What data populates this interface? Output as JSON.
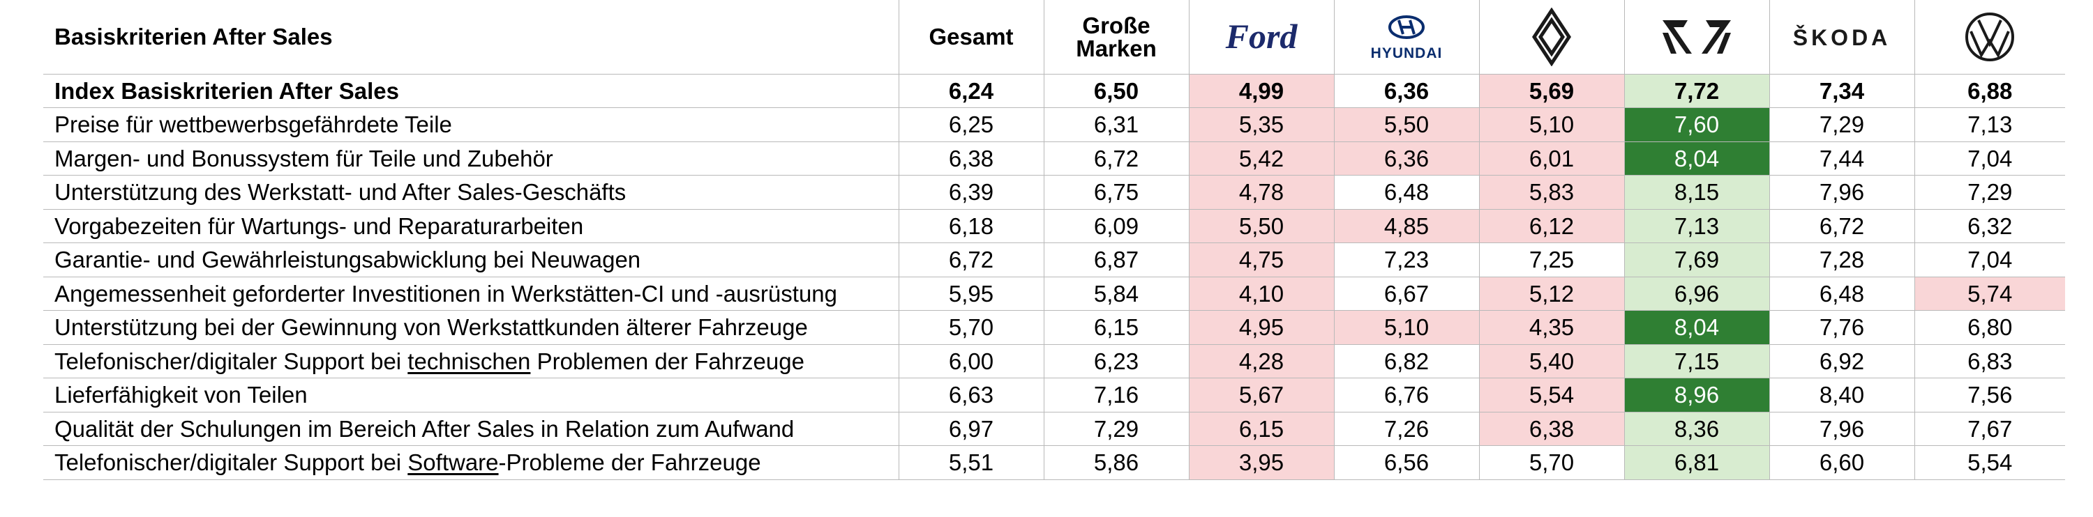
{
  "table": {
    "header": {
      "title": "Basiskriterien After Sales",
      "gesamt": "Gesamt",
      "grosse_line1": "Große",
      "grosse_line2": "Marken",
      "brands": [
        {
          "name": "Ford",
          "logo": "ford-logo",
          "color": "#1c2a6b"
        },
        {
          "name": "Hyundai",
          "logo": "hyundai-logo",
          "color": "#0a2d6e"
        },
        {
          "name": "Renault",
          "logo": "renault-logo",
          "color": "#1a1a1a"
        },
        {
          "name": "Cupra",
          "logo": "cupra-logo",
          "color": "#1a1a1a"
        },
        {
          "name": "ŠKODA",
          "logo": "skoda-logo",
          "color": "#1a1a1a"
        },
        {
          "name": "Volkswagen",
          "logo": "vw-logo",
          "color": "#1a1a1a"
        }
      ]
    },
    "rows": [
      {
        "label": "Index Basiskriterien After Sales",
        "values": [
          "6,24",
          "6,50",
          "4,99",
          "6,36",
          "5,69",
          "7,72",
          "7,34",
          "6,88"
        ],
        "highlight": [
          "",
          "",
          "pink",
          "",
          "pink",
          "light",
          "",
          ""
        ]
      },
      {
        "label": "Preise für wettbewerbsgefährdete Teile",
        "values": [
          "6,25",
          "6,31",
          "5,35",
          "5,50",
          "5,10",
          "7,60",
          "7,29",
          "7,13"
        ],
        "highlight": [
          "",
          "",
          "pink",
          "pink",
          "pink",
          "dark",
          "",
          ""
        ]
      },
      {
        "label": "Margen- und Bonussystem für Teile und Zubehör",
        "values": [
          "6,38",
          "6,72",
          "5,42",
          "6,36",
          "6,01",
          "8,04",
          "7,44",
          "7,04"
        ],
        "highlight": [
          "",
          "",
          "pink",
          "pink",
          "pink",
          "dark",
          "",
          ""
        ]
      },
      {
        "label": "Unterstützung des Werkstatt- und After Sales-Geschäfts",
        "values": [
          "6,39",
          "6,75",
          "4,78",
          "6,48",
          "5,83",
          "8,15",
          "7,96",
          "7,29"
        ],
        "highlight": [
          "",
          "",
          "pink",
          "",
          "pink",
          "light",
          "",
          ""
        ]
      },
      {
        "label": "Vorgabezeiten für Wartungs- und Reparaturarbeiten",
        "values": [
          "6,18",
          "6,09",
          "5,50",
          "4,85",
          "6,12",
          "7,13",
          "6,72",
          "6,32"
        ],
        "highlight": [
          "",
          "",
          "pink",
          "pink",
          "pink",
          "light",
          "",
          ""
        ]
      },
      {
        "label": "Garantie- und Gewährleistungsabwicklung bei Neuwagen",
        "values": [
          "6,72",
          "6,87",
          "4,75",
          "7,23",
          "7,25",
          "7,69",
          "7,28",
          "7,04"
        ],
        "highlight": [
          "",
          "",
          "pink",
          "",
          "",
          "light",
          "",
          ""
        ]
      },
      {
        "label": "Angemessenheit geforderter Investitionen in Werkstätten-CI und -ausrüstung",
        "values": [
          "5,95",
          "5,84",
          "4,10",
          "6,67",
          "5,12",
          "6,96",
          "6,48",
          "5,74"
        ],
        "highlight": [
          "",
          "",
          "pink",
          "",
          "pink",
          "light",
          "",
          "pink"
        ]
      },
      {
        "label": "Unterstützung bei der Gewinnung von Werkstattkunden älterer Fahrzeuge",
        "values": [
          "5,70",
          "6,15",
          "4,95",
          "5,10",
          "4,35",
          "8,04",
          "7,76",
          "6,80"
        ],
        "highlight": [
          "",
          "",
          "pink",
          "pink",
          "pink",
          "dark",
          "",
          ""
        ]
      },
      {
        "label_pre": "Telefonischer/digitaler Support bei ",
        "label_u": "technischen",
        "label_post": " Problemen der Fahrzeuge",
        "values": [
          "6,00",
          "6,23",
          "4,28",
          "6,82",
          "5,40",
          "7,15",
          "6,92",
          "6,83"
        ],
        "highlight": [
          "",
          "",
          "pink",
          "",
          "pink",
          "light",
          "",
          ""
        ]
      },
      {
        "label": "Lieferfähigkeit von Teilen",
        "values": [
          "6,63",
          "7,16",
          "5,67",
          "6,76",
          "5,54",
          "8,96",
          "8,40",
          "7,56"
        ],
        "highlight": [
          "",
          "",
          "pink",
          "",
          "pink",
          "dark",
          "",
          ""
        ]
      },
      {
        "label": "Qualität der Schulungen im Bereich After Sales in Relation zum Aufwand",
        "values": [
          "6,97",
          "7,29",
          "6,15",
          "7,26",
          "6,38",
          "8,36",
          "7,96",
          "7,67"
        ],
        "highlight": [
          "",
          "",
          "pink",
          "",
          "pink",
          "light",
          "",
          ""
        ]
      },
      {
        "label_pre": "Telefonischer/digitaler Support bei ",
        "label_u": "Software",
        "label_post": "-Probleme der Fahrzeuge",
        "values": [
          "5,51",
          "5,86",
          "3,95",
          "6,56",
          "5,70",
          "6,81",
          "6,60",
          "5,54"
        ],
        "highlight": [
          "",
          "",
          "pink",
          "",
          "",
          "light",
          "",
          ""
        ]
      }
    ],
    "colors": {
      "pink": "#f9d6d7",
      "light_green": "#d8ecd0",
      "dark_green": "#2f7f33"
    }
  }
}
